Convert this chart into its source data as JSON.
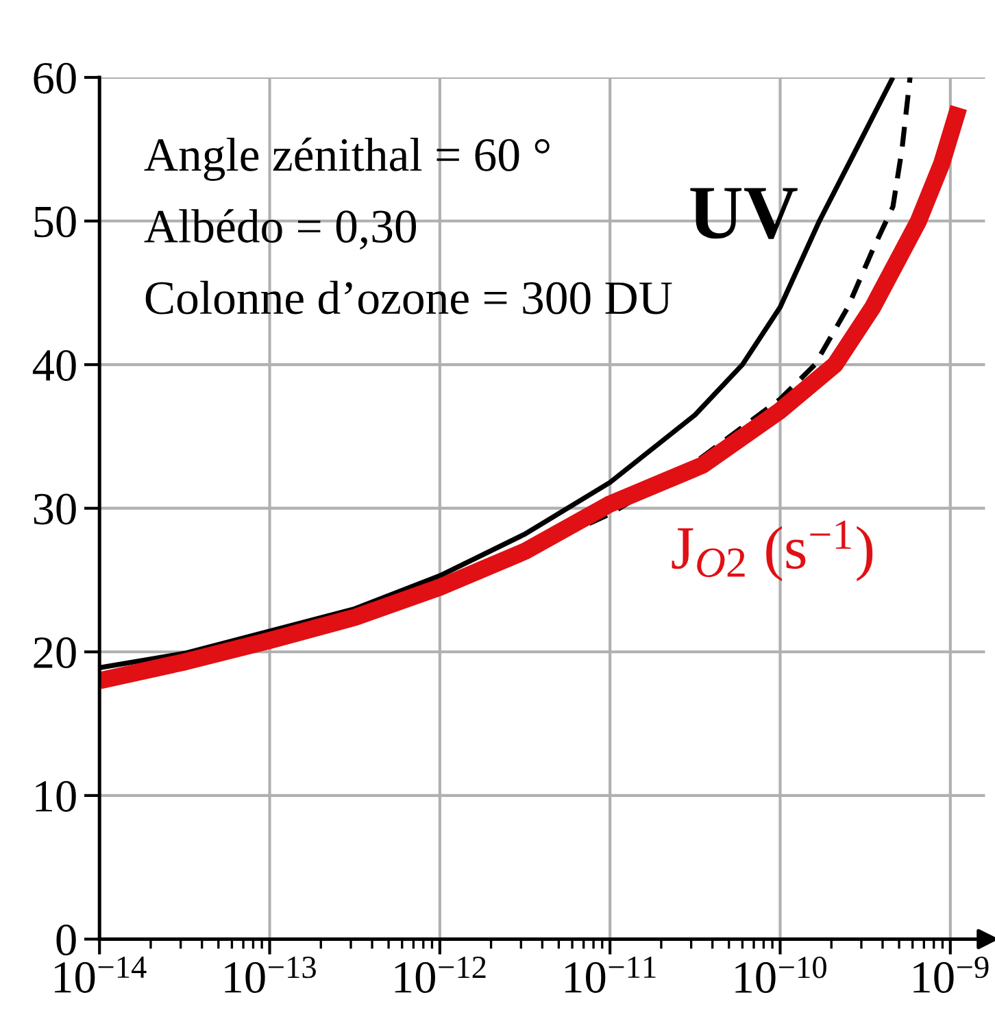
{
  "chart_data": {
    "type": "line",
    "log": "x",
    "grid": true,
    "legend": false,
    "xlim": [
      1e-14,
      1.6e-09
    ],
    "ylim": [
      0,
      60
    ],
    "xticks": [
      {
        "value": 1e-14,
        "label": "10$^{−14}$"
      },
      {
        "value": 1e-13,
        "label": "10$^{−13}$"
      },
      {
        "value": 1e-12,
        "label": "10$^{−12}$"
      },
      {
        "value": 1e-11,
        "label": "10$^{−11}$"
      },
      {
        "value": 1e-10,
        "label": "10$^{−10}$"
      },
      {
        "value": 1e-09,
        "label": "10$^{−9}$"
      }
    ],
    "yticks": [
      0,
      10,
      20,
      30,
      40,
      50,
      60
    ],
    "annotations": [
      "Angle zénithal = 60 °",
      "Albédo = 0,30",
      "Colonne d’ozone = 300 DU"
    ],
    "series": [
      {
        "name": "UV",
        "color": "#000000",
        "line_style": "solid",
        "x": [
          1e-14,
          3.16e-14,
          3.16e-13,
          1e-12,
          3.16e-12,
          1e-11,
          3.16e-11,
          6e-11,
          1e-10,
          1.7e-10,
          2.8e-10,
          4.6e-10
        ],
        "values": [
          18.9,
          19.9,
          23.0,
          25.3,
          28.2,
          31.8,
          36.5,
          40,
          44,
          50,
          55,
          60
        ]
      },
      {
        "color": "#000000",
        "line_style": "dashed",
        "x": [
          1e-14,
          1e-12,
          1e-11,
          3.16e-11,
          1e-10,
          1.6e-10,
          2.5e-10,
          3.5e-10,
          4.6e-10,
          5.2e-10,
          5.8e-10
        ],
        "values": [
          18.3,
          24.2,
          29.6,
          33.2,
          37.6,
          40,
          44,
          48,
          51,
          55,
          60
        ]
      },
      {
        "name": "J$_{O2}$ (s$^{−1}$)",
        "color": "#e01014",
        "line_style": "solid",
        "x": [
          1e-14,
          3.16e-14,
          1e-13,
          3.16e-13,
          1e-12,
          3.16e-12,
          1e-11,
          3.5e-11,
          1e-10,
          2.1e-10,
          3.5e-10,
          6.5e-10,
          8.9e-10,
          1.12e-09
        ],
        "values": [
          18,
          19.3,
          20.8,
          22.4,
          24.5,
          27,
          30.3,
          33,
          36.8,
          40,
          44,
          50,
          54,
          57.9
        ]
      }
    ]
  }
}
